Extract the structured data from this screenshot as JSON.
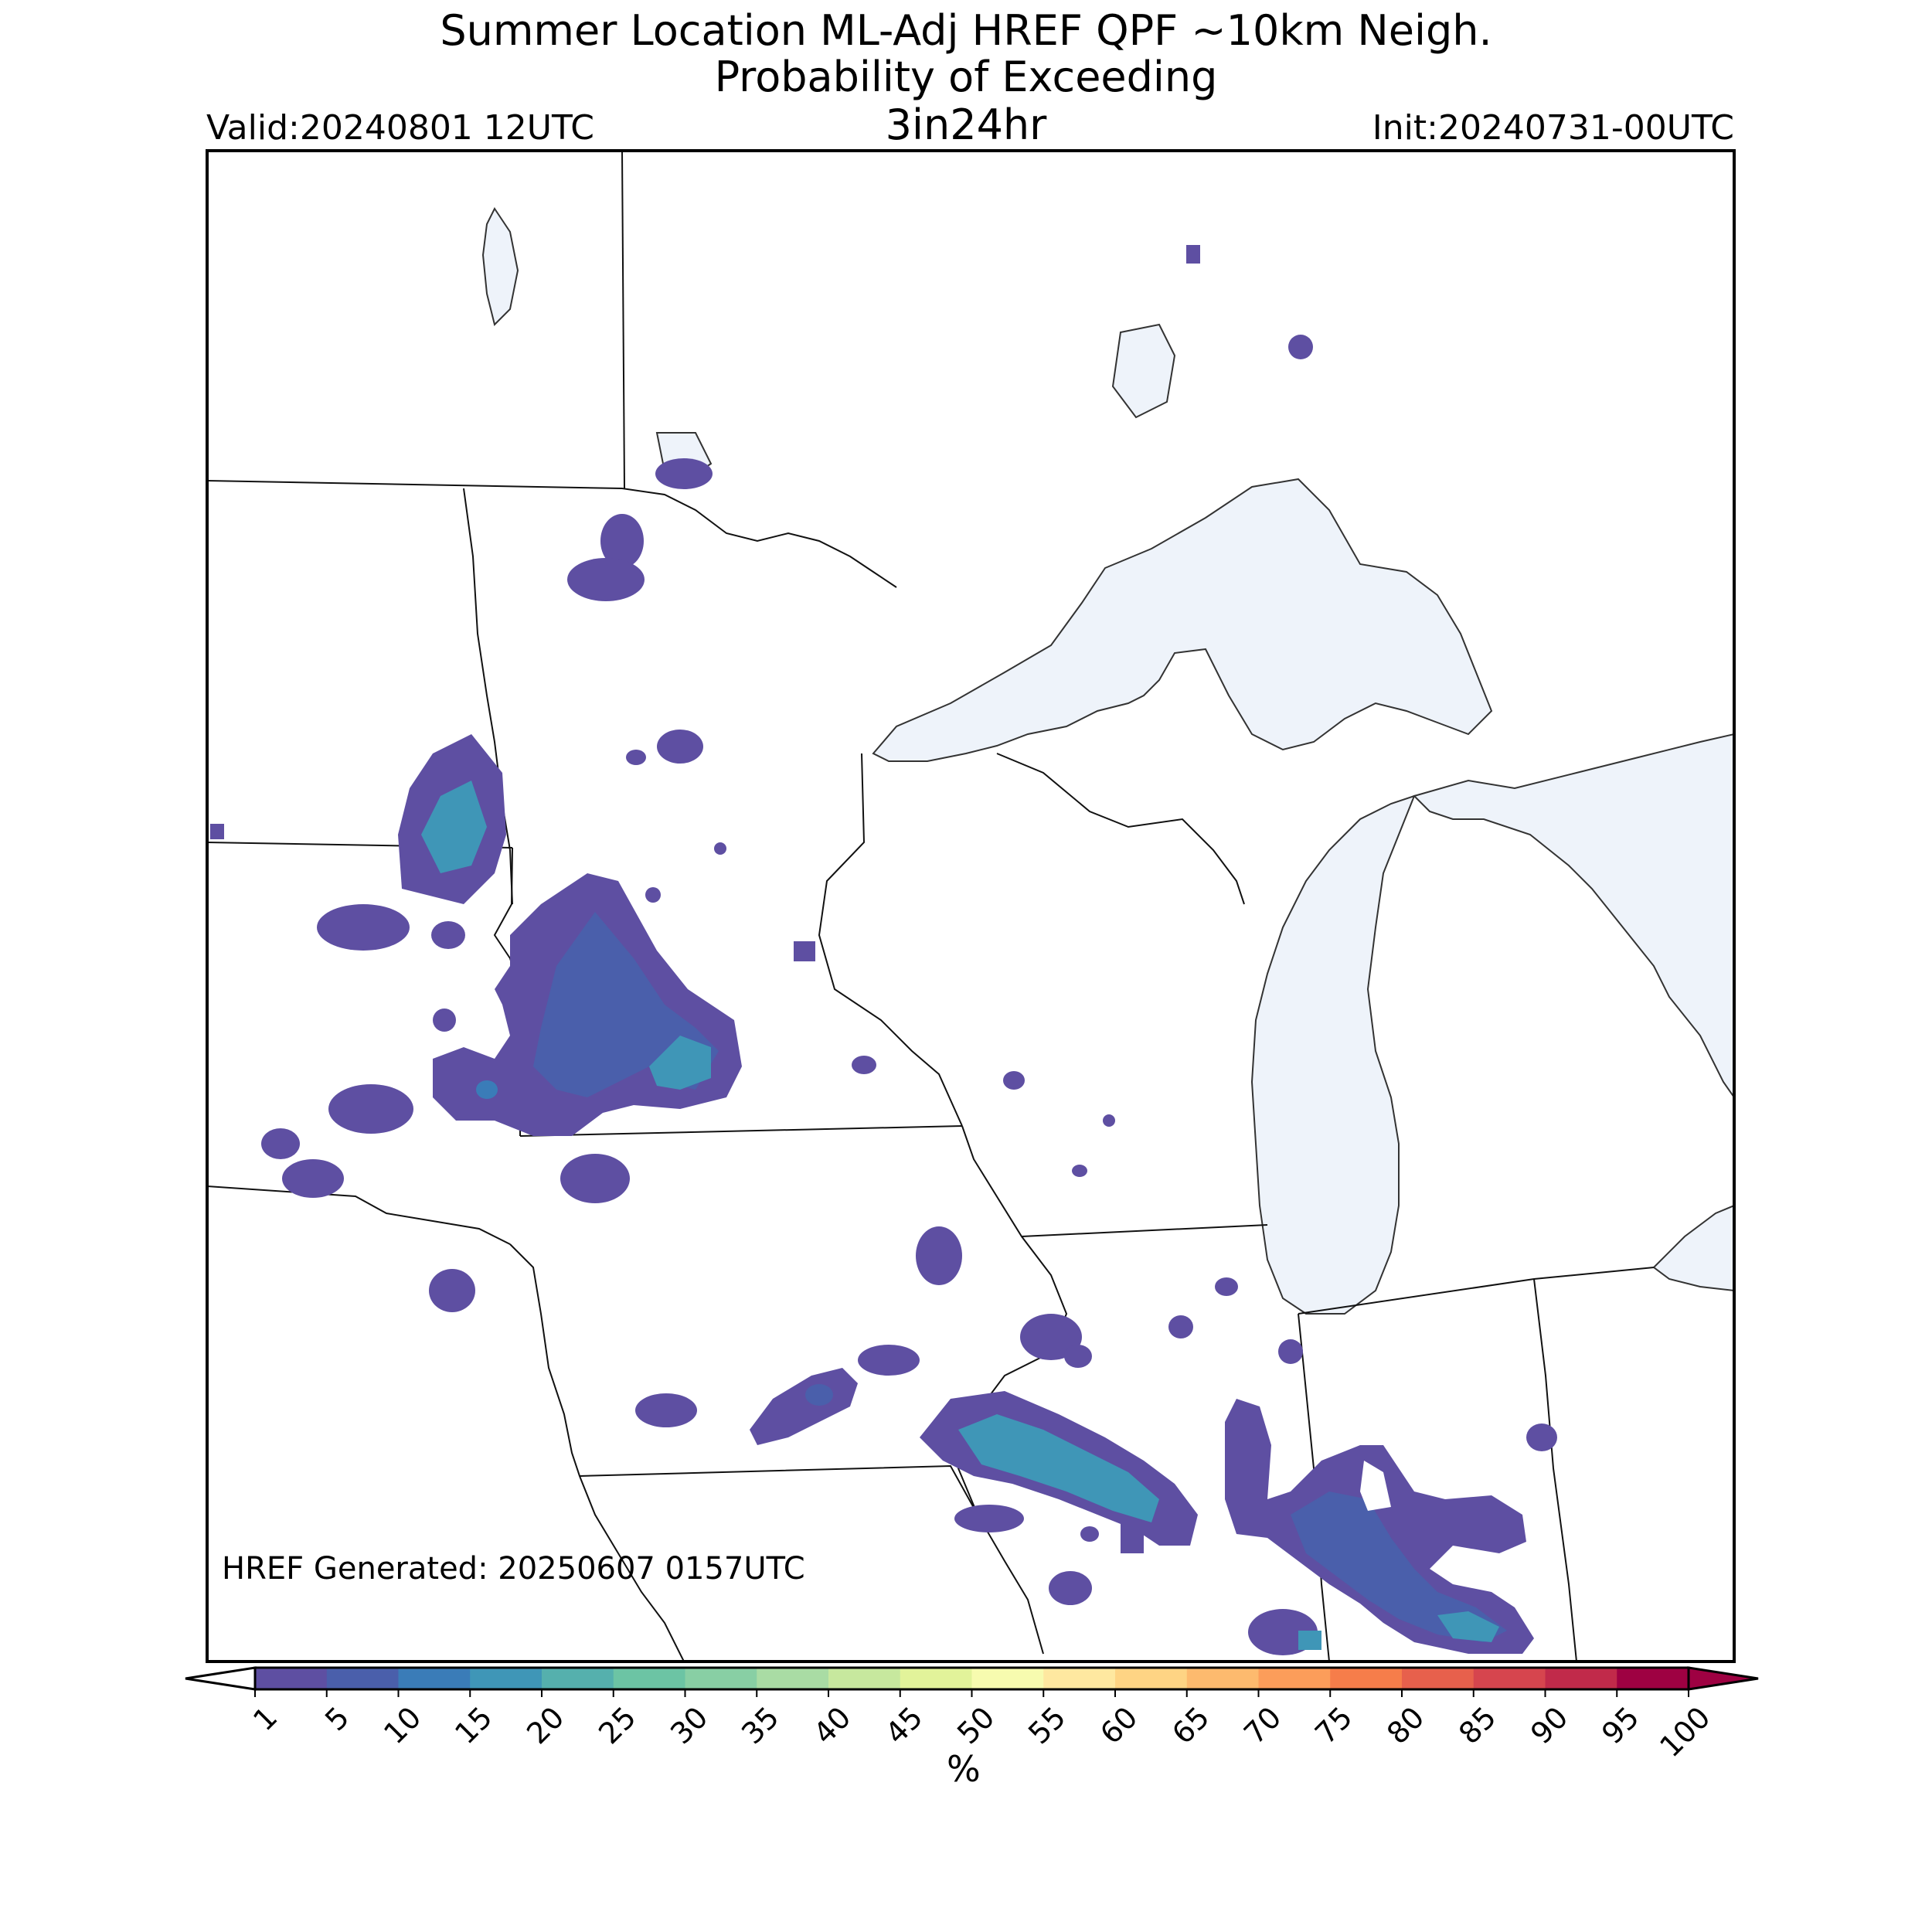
{
  "title": {
    "line1": "Summer Location ML-Adj HREF QPF ~10km Neigh.",
    "line2": "Probability of Exceeding",
    "line3": "3in24hr"
  },
  "valid": "Valid:20240801 12UTC",
  "init": "Init:20240731-00UTC",
  "generated": "HREF Generated: 20250607 0157UTC",
  "colorbar": {
    "unit": "%",
    "ticks": [
      "1",
      "5",
      "10",
      "15",
      "20",
      "25",
      "30",
      "35",
      "40",
      "45",
      "50",
      "55",
      "60",
      "65",
      "70",
      "75",
      "80",
      "85",
      "90",
      "95",
      "100"
    ],
    "colors": [
      "#5e4fa2",
      "#4a5fab",
      "#3a7cb8",
      "#3f96b7",
      "#55b0ad",
      "#6cc4a4",
      "#88cfa4",
      "#a9dca4",
      "#c7e89e",
      "#e2f39a",
      "#f7fbaf",
      "#fee8a0",
      "#fed484",
      "#fdba6e",
      "#fc9d5a",
      "#f67d4a",
      "#e7604c",
      "#d6454e",
      "#c12a4a",
      "#9e0142"
    ],
    "under_color": "#ffffff",
    "over_color": "#9e0142"
  },
  "map": {
    "water_color": "#eef3fa",
    "probability_regions": [
      {
        "name": "nw-minnesota-cluster",
        "level": "1-5"
      },
      {
        "name": "eastern-south-dakota-cluster",
        "level": "5-15"
      },
      {
        "name": "southwest-minnesota-cluster",
        "level": "5-15"
      },
      {
        "name": "northern-illinois-band",
        "level": "5-15"
      },
      {
        "name": "northern-indiana-band",
        "level": "5-20"
      }
    ]
  }
}
